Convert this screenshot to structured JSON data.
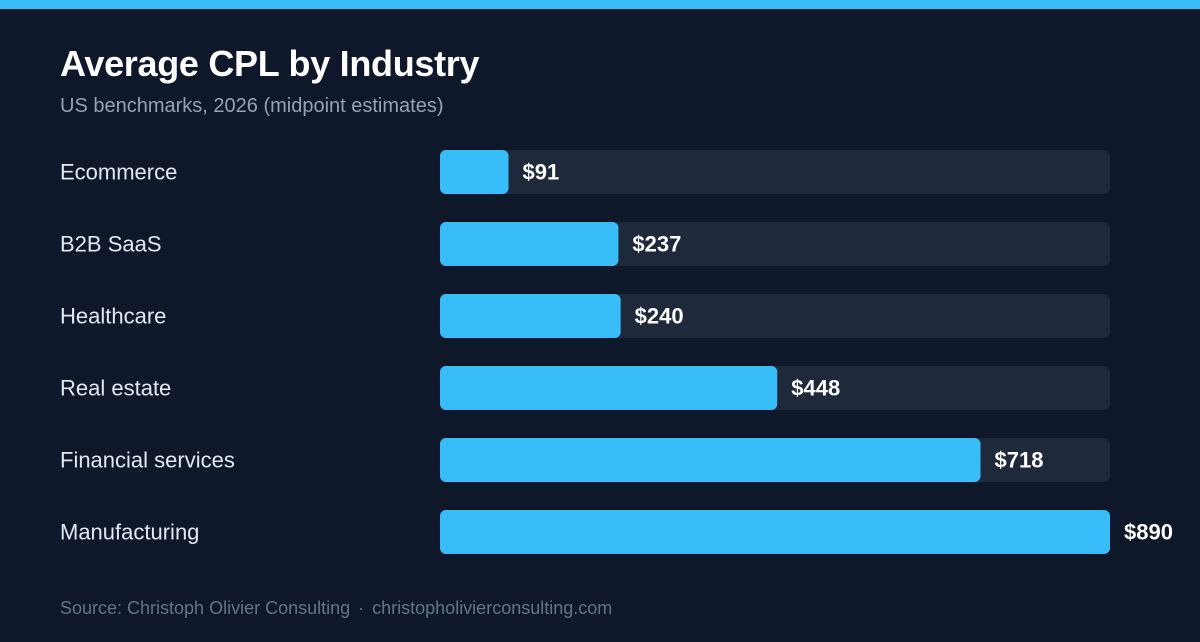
{
  "header": {
    "title": "Average CPL by Industry",
    "subtitle": "US benchmarks, 2026 (midpoint estimates)"
  },
  "footer": {
    "source": "Source: Christoph Olivier Consulting",
    "separator": "·",
    "website": "christopholivierconsulting.com"
  },
  "colors": {
    "background": "#0f172a",
    "accent": "#38bdf8",
    "track": "#1e293b",
    "label": "#e2e8f0",
    "value_label": "#ffffff"
  },
  "chart_data": {
    "type": "bar",
    "orientation": "horizontal",
    "title": "Average CPL by Industry",
    "subtitle": "US benchmarks, 2026 (midpoint estimates)",
    "categories": [
      "Ecommerce",
      "B2B SaaS",
      "Healthcare",
      "Real estate",
      "Financial services",
      "Manufacturing"
    ],
    "values": [
      91,
      237,
      240,
      448,
      718,
      890
    ],
    "value_labels": [
      "$91",
      "$237",
      "$240",
      "$448",
      "$718",
      "$890"
    ],
    "xlim": [
      0,
      890
    ],
    "grid": false,
    "legend": "none"
  }
}
